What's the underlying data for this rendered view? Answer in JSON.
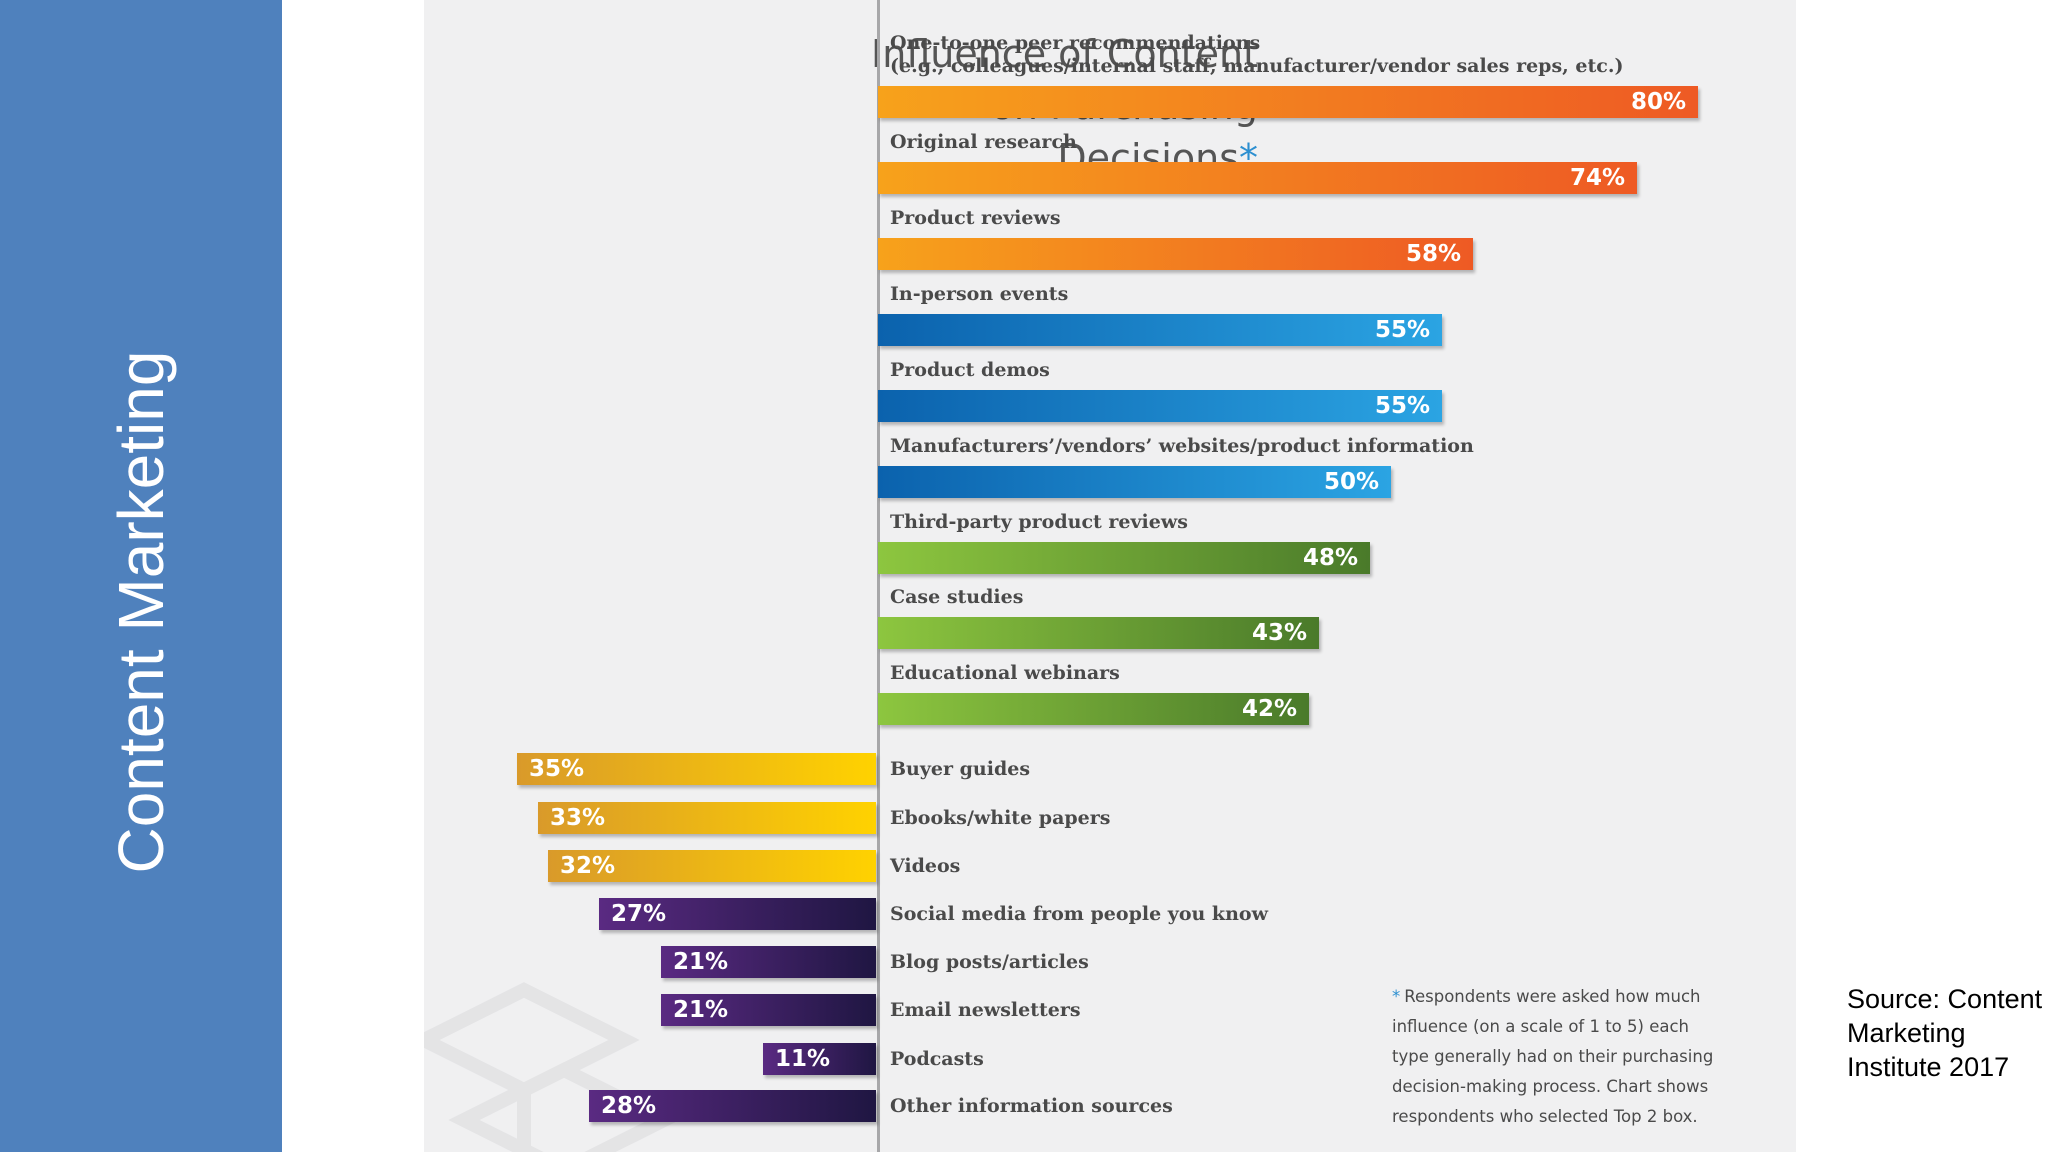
{
  "sidebar": {
    "title": "Content Marketing"
  },
  "colors": {
    "sidebar": "#4f81bd",
    "orange": [
      "#f7a21b",
      "#ee5a24"
    ],
    "blue": [
      "#0b62ad",
      "#2ba4e3"
    ],
    "green": [
      "#8dc63f",
      "#4a7a2a"
    ],
    "gold": [
      "#d99a2a",
      "#ffd200"
    ],
    "purple": [
      "#5a2a82",
      "#1f1642"
    ],
    "footnote_star": "#2c8fd0"
  },
  "chart_data": {
    "type": "bar",
    "orientation": "horizontal",
    "title": "Influence of Content on Purchasing Decisions",
    "title_lines": [
      "Influence of Content",
      "on Purchasing",
      "Decisions"
    ],
    "title_marker": "*",
    "xlim": [
      0,
      100
    ],
    "grid": false,
    "legend": "none",
    "right_bars": [
      {
        "label_lines": [
          "One-to-one peer recommendations",
          "(e.g., colleagues/internal staff, manufacturer/vendor sales reps, etc.)"
        ],
        "value": 80,
        "display": "80%",
        "color_group": "orange"
      },
      {
        "label_lines": [
          "Original research"
        ],
        "value": 74,
        "display": "74%",
        "color_group": "orange"
      },
      {
        "label_lines": [
          "Product reviews"
        ],
        "value": 58,
        "display": "58%",
        "color_group": "orange"
      },
      {
        "label_lines": [
          "In-person events"
        ],
        "value": 55,
        "display": "55%",
        "color_group": "blue"
      },
      {
        "label_lines": [
          "Product demos"
        ],
        "value": 55,
        "display": "55%",
        "color_group": "blue"
      },
      {
        "label_lines": [
          "Manufacturers’/vendors’ websites/product information"
        ],
        "value": 50,
        "display": "50%",
        "color_group": "blue"
      },
      {
        "label_lines": [
          "Third-party product reviews"
        ],
        "value": 48,
        "display": "48%",
        "color_group": "green"
      },
      {
        "label_lines": [
          "Case studies"
        ],
        "value": 43,
        "display": "43%",
        "color_group": "green"
      },
      {
        "label_lines": [
          "Educational webinars"
        ],
        "value": 42,
        "display": "42%",
        "color_group": "green"
      }
    ],
    "left_bars": [
      {
        "label": "Buyer guides",
        "value": 35,
        "display": "35%",
        "color_group": "gold"
      },
      {
        "label": "Ebooks/white papers",
        "value": 33,
        "display": "33%",
        "color_group": "gold"
      },
      {
        "label": "Videos",
        "value": 32,
        "display": "32%",
        "color_group": "gold"
      },
      {
        "label": "Social media from people you know",
        "value": 27,
        "display": "27%",
        "color_group": "purple"
      },
      {
        "label": "Blog posts/articles",
        "value": 21,
        "display": "21%",
        "color_group": "purple"
      },
      {
        "label": "Email newsletters",
        "value": 21,
        "display": "21%",
        "color_group": "purple"
      },
      {
        "label": "Podcasts",
        "value": 11,
        "display": "11%",
        "color_group": "purple"
      },
      {
        "label": "Other information sources",
        "value": 28,
        "display": "28%",
        "color_group": "purple"
      }
    ],
    "footnote": {
      "marker": "*",
      "lines": [
        "Respondents were asked how much",
        "influence (on a scale of 1 to 5) each",
        "type generally had on their purchasing",
        "decision-making process. Chart shows",
        "respondents who selected Top 2 box."
      ]
    }
  },
  "source": {
    "lines": [
      "Source:  Content",
      "Marketing",
      "Institute 2017"
    ]
  }
}
